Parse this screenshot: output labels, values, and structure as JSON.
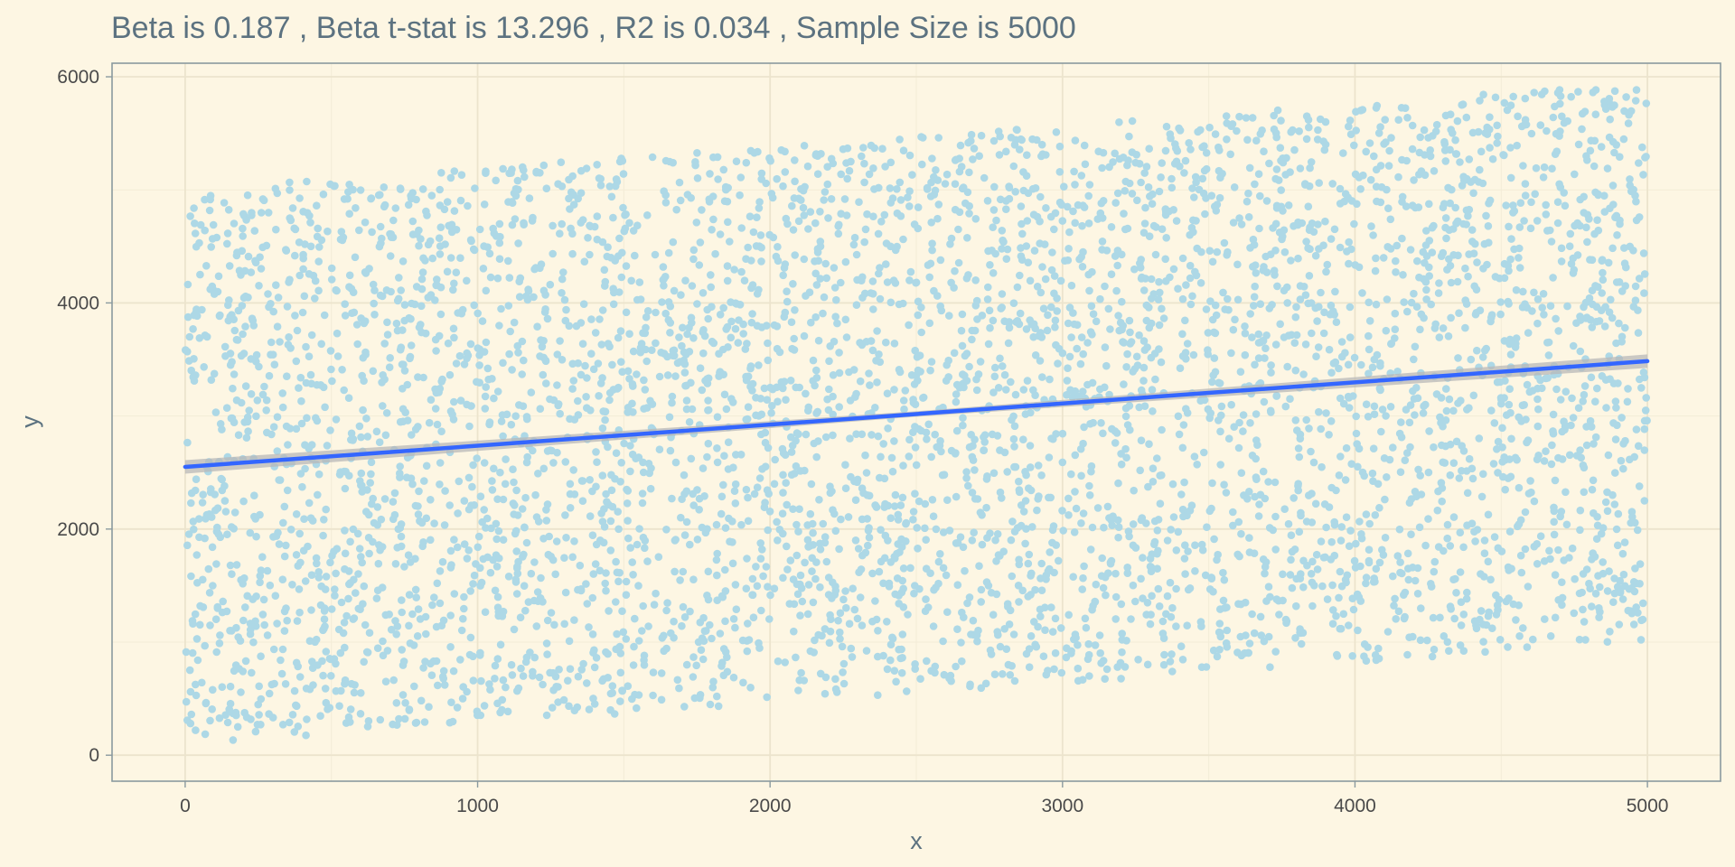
{
  "chart_data": {
    "type": "scatter",
    "title": "Beta is 0.187 , Beta t-stat is 13.296 , R2 is 0.034 , Sample Size is 5000",
    "xlabel": "x",
    "ylabel": "y",
    "xlim": [
      -250,
      5250
    ],
    "ylim": [
      -230,
      6120
    ],
    "x_ticks": [
      0,
      1000,
      2000,
      3000,
      4000,
      5000
    ],
    "x_tick_labels": [
      "0",
      "1000",
      "2000",
      "3000",
      "4000",
      "5000"
    ],
    "y_ticks": [
      0,
      2000,
      4000,
      6000
    ],
    "y_tick_labels": [
      "0",
      "2000",
      "4000",
      "6000"
    ],
    "x_minor_ticks": [
      500,
      1500,
      2500,
      3500,
      4500
    ],
    "y_minor_ticks": [
      1000,
      3000,
      5000
    ],
    "grid": true,
    "legend": "none",
    "sample_size": 5000,
    "point_color": "#add8e6",
    "fit": {
      "method": "lm",
      "intercept": 2550,
      "slope": 0.187,
      "x_range": [
        0,
        5000
      ],
      "se_band_half_width": 60,
      "line_color": "#3366ff",
      "band_color": "#b8b8b8"
    },
    "points_summary": {
      "x_range": [
        0,
        5000
      ],
      "y_lower_at_x0": 100,
      "y_upper_at_x0": 5000,
      "y_lower_at_x5000": 1000,
      "y_upper_at_x5000": 5950
    }
  }
}
